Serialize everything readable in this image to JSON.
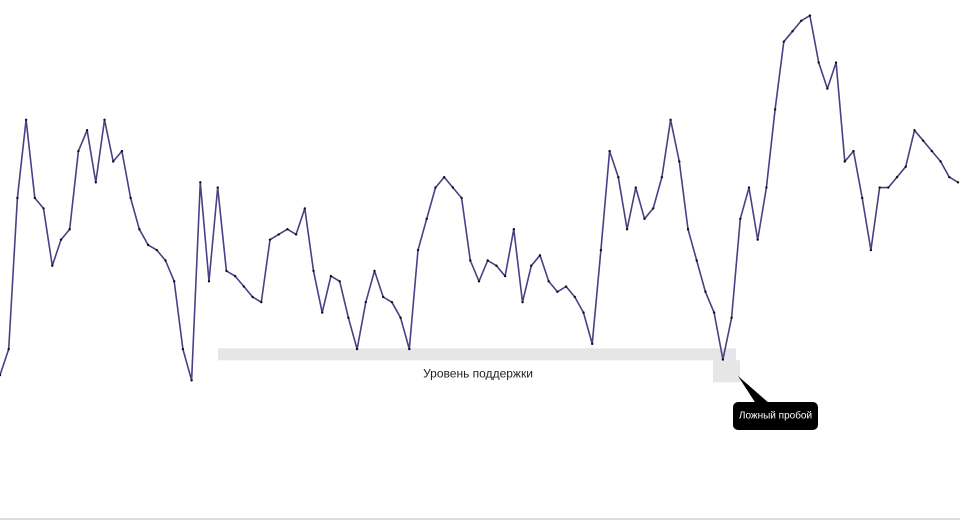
{
  "chart_data": {
    "type": "line",
    "color": "#4b3f86",
    "ylim": [
      0,
      100
    ],
    "values": [
      28,
      33,
      62,
      77,
      62,
      60,
      49,
      54,
      56,
      71,
      75,
      65,
      77,
      69,
      71,
      62,
      56,
      53,
      52,
      50,
      46,
      33,
      27,
      65,
      46,
      64,
      48,
      47,
      45,
      43,
      42,
      54,
      55,
      56,
      55,
      60,
      48,
      40,
      47,
      46,
      39,
      33,
      42,
      48,
      43,
      42,
      39,
      33,
      52,
      58,
      64,
      66,
      64,
      62,
      50,
      46,
      50,
      49,
      47,
      56,
      42,
      49,
      51,
      46,
      44,
      45,
      43,
      40,
      34,
      52,
      71,
      66,
      56,
      64,
      58,
      60,
      66,
      77,
      69,
      56,
      50,
      44,
      40,
      31,
      39,
      58,
      64,
      54,
      64,
      79,
      92,
      94,
      96,
      97,
      88,
      83,
      88,
      69,
      71,
      62,
      52,
      64,
      64,
      66,
      68,
      75,
      73,
      71,
      69,
      66,
      65
    ],
    "support_level": 32,
    "annotations": [
      {
        "text": "Уровень поддержки"
      },
      {
        "text": "Ложный пробой"
      }
    ]
  }
}
